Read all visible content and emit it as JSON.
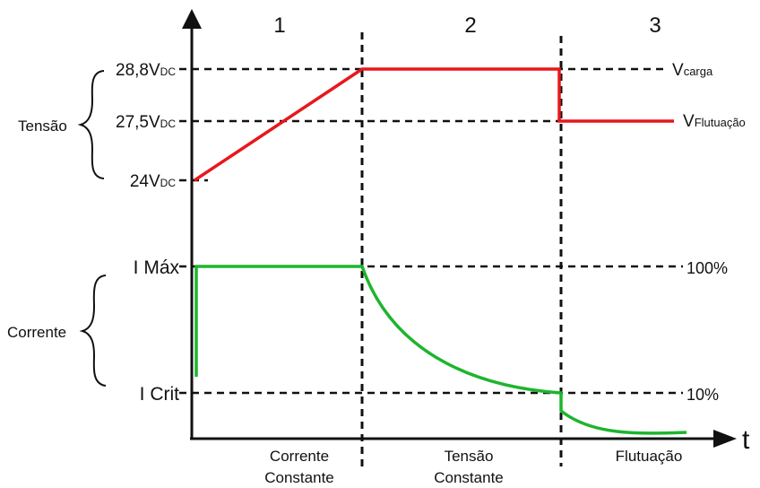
{
  "phases": [
    {
      "number": "1",
      "label_line1": "Corrente",
      "label_line2": "Constante"
    },
    {
      "number": "2",
      "label_line1": "Tensão",
      "label_line2": "Constante"
    },
    {
      "number": "3",
      "label_line1": "Flutuação",
      "label_line2": ""
    }
  ],
  "time_axis_label": "t",
  "voltage": {
    "group_label": "Tensão",
    "level_high": {
      "main": "28,8V",
      "sub": "DC"
    },
    "level_float": {
      "main": "27,5V",
      "sub": "DC"
    },
    "level_low": {
      "main": "24V",
      "sub": "DC"
    },
    "charge_marker": {
      "main": "V",
      "sub": "carga"
    },
    "float_marker": {
      "main": "V",
      "sub": "Flutuação"
    },
    "curve_color": "#e8171c"
  },
  "current": {
    "group_label": "Corrente",
    "level_max": "I Máx",
    "level_crit": "I Crit",
    "pct_max": "100%",
    "pct_crit": "10%",
    "curve_color": "#1db52d"
  }
}
